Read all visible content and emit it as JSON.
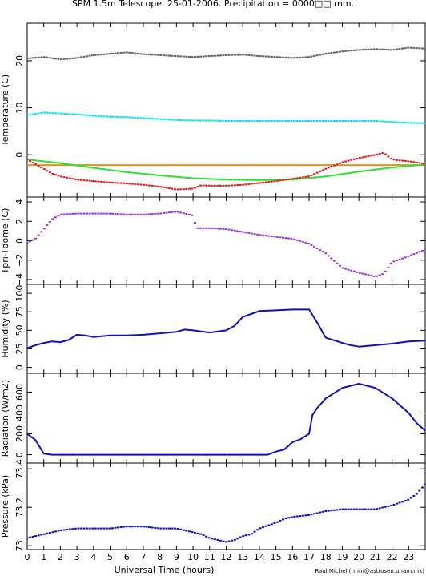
{
  "title": "SPM 1.5m Telescope. 25-01-2006. Precipitation = 0000□□ mm.",
  "credit": "Raul Michel (rmm@astrosen.unam.mx)",
  "chart_data": [
    {
      "type": "scatter",
      "ylabel": "Temperature (C)",
      "ylim": [
        -9,
        28
      ],
      "yticks": [
        "0",
        "10",
        "20"
      ],
      "ytick_values": [
        0,
        10,
        20
      ],
      "series": [
        {
          "color": "#606060",
          "style": "dots",
          "x": [
            0,
            1,
            2,
            3,
            4,
            5,
            6,
            7,
            8,
            9,
            10,
            11,
            12,
            13,
            14,
            15,
            16,
            17,
            18,
            19,
            20,
            21,
            22,
            23,
            24
          ],
          "y": [
            20.5,
            20.8,
            20.3,
            20.6,
            21.2,
            21.5,
            21.8,
            21.4,
            21.2,
            21.0,
            20.8,
            21.0,
            21.2,
            21.3,
            21.0,
            20.8,
            20.6,
            20.8,
            21.5,
            22.0,
            22.3,
            22.5,
            22.3,
            22.8,
            22.6
          ]
        },
        {
          "color": "#00e5ee",
          "style": "dots",
          "x": [
            0,
            1,
            2,
            3,
            4,
            5,
            6,
            7,
            8,
            9,
            10,
            11,
            12,
            13,
            14,
            15,
            16,
            17,
            18,
            19,
            20,
            21,
            22,
            23,
            24
          ],
          "y": [
            8.4,
            9.0,
            8.8,
            8.6,
            8.3,
            8.1,
            8.0,
            7.8,
            7.6,
            7.4,
            7.3,
            7.3,
            7.2,
            7.2,
            7.2,
            7.2,
            7.2,
            7.2,
            7.2,
            7.2,
            7.2,
            7.2,
            7.0,
            6.8,
            6.7
          ]
        },
        {
          "color": "#e8920a",
          "style": "line",
          "x": [
            0,
            24
          ],
          "y": [
            -2.2,
            -2.2
          ]
        },
        {
          "color": "#30e030",
          "style": "line",
          "x": [
            0,
            2,
            4,
            6,
            8,
            10,
            12,
            14,
            16,
            18,
            20,
            22,
            24
          ],
          "y": [
            -1.0,
            -1.8,
            -2.8,
            -3.7,
            -4.4,
            -5.0,
            -5.3,
            -5.4,
            -5.3,
            -4.6,
            -3.6,
            -2.7,
            -2.1
          ]
        },
        {
          "color": "#e02020",
          "style": "dots",
          "x": [
            0,
            0.5,
            1,
            1.5,
            2,
            3,
            4,
            5,
            6,
            7,
            8,
            9,
            10,
            10.5,
            11,
            12,
            13,
            14,
            15,
            16,
            17,
            18,
            19,
            20,
            21,
            21.5,
            22,
            23,
            24
          ],
          "y": [
            -1.0,
            -2.0,
            -3.0,
            -4.0,
            -4.6,
            -5.3,
            -5.6,
            -5.9,
            -6.1,
            -6.4,
            -6.8,
            -7.4,
            -7.2,
            -6.5,
            -6.6,
            -6.6,
            -6.4,
            -6.0,
            -5.6,
            -5.1,
            -4.6,
            -3.0,
            -1.6,
            -0.7,
            0.0,
            0.4,
            -1.0,
            -1.4,
            -1.9
          ]
        }
      ]
    },
    {
      "type": "scatter",
      "ylabel": "Tpri-Tdome (C)",
      "ylim": [
        -4.5,
        4.5
      ],
      "yticks": [
        "−4",
        "−2",
        "0",
        "2",
        "4"
      ],
      "ytick_values": [
        -4,
        -2,
        0,
        2,
        4
      ],
      "series": [
        {
          "color": "#9a3bd0",
          "style": "dots",
          "x": [
            0,
            0.5,
            1,
            1.5,
            2,
            3,
            4,
            5,
            6,
            7,
            8,
            9,
            9.5,
            10,
            10.2,
            11,
            12,
            13,
            14,
            15,
            16,
            17,
            18,
            19,
            20,
            21,
            21.5,
            22,
            23,
            24
          ],
          "y": [
            -0.2,
            0.2,
            1.2,
            2.2,
            2.7,
            2.8,
            2.8,
            2.8,
            2.7,
            2.7,
            2.8,
            3.0,
            2.8,
            2.6,
            1.3,
            1.3,
            1.2,
            0.9,
            0.6,
            0.4,
            0.2,
            -0.3,
            -1.3,
            -2.8,
            -3.3,
            -3.7,
            -3.4,
            -2.2,
            -1.6,
            -0.9
          ]
        }
      ]
    },
    {
      "type": "line",
      "ylabel": "Humidity (%)",
      "ylim": [
        -8,
        112
      ],
      "yticks": [
        "0",
        "25",
        "50",
        "75",
        "100"
      ],
      "ytick_values": [
        0,
        25,
        50,
        75,
        100
      ],
      "series": [
        {
          "color": "#1010c0",
          "style": "line",
          "x": [
            0,
            0.5,
            1,
            1.5,
            2,
            2.5,
            3,
            3.5,
            4,
            5,
            6,
            7,
            8,
            9,
            9.5,
            10,
            11,
            12,
            12.5,
            13,
            13.5,
            14,
            15,
            16,
            17,
            17.5,
            18,
            19,
            19.5,
            20,
            21,
            22,
            23,
            24
          ],
          "y": [
            26,
            30,
            33,
            35,
            34,
            37,
            44,
            43,
            41,
            43,
            43,
            44,
            46,
            48,
            51,
            50,
            47,
            50,
            56,
            68,
            72,
            76,
            77,
            78,
            78,
            60,
            40,
            33,
            30,
            28,
            30,
            32,
            35,
            36
          ]
        }
      ]
    },
    {
      "type": "line",
      "ylabel": "Radiation (W/m2)",
      "ylim": [
        -80,
        780
      ],
      "yticks": [
        "0",
        "200",
        "400",
        "600"
      ],
      "ytick_values": [
        0,
        200,
        400,
        600
      ],
      "series": [
        {
          "color": "#1010c0",
          "style": "line",
          "x": [
            0,
            0.5,
            1,
            1.5,
            2,
            5,
            8,
            10,
            12,
            14,
            14.5,
            15,
            15.5,
            16,
            16.5,
            17,
            17.2,
            17.5,
            18,
            19,
            20,
            21,
            22,
            23,
            23.5,
            24
          ],
          "y": [
            200,
            140,
            10,
            0,
            0,
            0,
            0,
            0,
            0,
            0,
            0,
            30,
            50,
            120,
            150,
            200,
            380,
            450,
            540,
            640,
            680,
            640,
            540,
            400,
            300,
            230
          ]
        }
      ]
    },
    {
      "type": "scatter",
      "ylabel": "Pressure (kPa)",
      "ylim": [
        72.98,
        73.43
      ],
      "yticks": [
        "73",
        "73.2",
        "73.4"
      ],
      "ytick_values": [
        73.0,
        73.2,
        73.4
      ],
      "series": [
        {
          "color": "#1010c0",
          "style": "dots",
          "x": [
            0,
            0.5,
            1,
            2,
            3,
            4,
            5,
            6,
            7,
            8,
            9,
            9.5,
            10,
            10.5,
            11,
            11.5,
            12,
            12.5,
            13,
            13.5,
            14,
            15,
            15.5,
            16,
            17,
            18,
            19,
            20,
            21,
            22,
            23,
            23.5,
            24
          ],
          "y": [
            73.04,
            73.05,
            73.06,
            73.08,
            73.09,
            73.09,
            73.09,
            73.1,
            73.1,
            73.09,
            73.09,
            73.08,
            73.07,
            73.06,
            73.04,
            73.03,
            73.02,
            73.03,
            73.05,
            73.06,
            73.09,
            73.12,
            73.14,
            73.15,
            73.16,
            73.18,
            73.19,
            73.19,
            73.19,
            73.21,
            73.24,
            73.27,
            73.32
          ]
        }
      ]
    }
  ],
  "x_axis": {
    "label": "Universal Time (hours)",
    "range": [
      0,
      24
    ],
    "tick_values": [
      0,
      1,
      2,
      3,
      4,
      5,
      6,
      7,
      8,
      9,
      10,
      11,
      12,
      13,
      14,
      15,
      16,
      17,
      18,
      19,
      20,
      21,
      22,
      23
    ],
    "tick_labels": [
      "0",
      "1",
      "2",
      "3",
      "4",
      "5",
      "6",
      "7",
      "8",
      "9",
      "10",
      "11",
      "12",
      "13",
      "14",
      "15",
      "16",
      "17",
      "18",
      "19",
      "20",
      "21",
      "22",
      "23"
    ]
  }
}
